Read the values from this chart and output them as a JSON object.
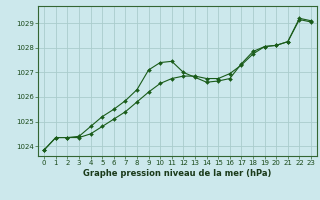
{
  "xlabel": "Graphe pression niveau de la mer (hPa)",
  "background_color": "#cce8ec",
  "grid_color": "#aacccc",
  "line_color": "#1a5c1a",
  "xlim": [
    -0.5,
    23.5
  ],
  "ylim": [
    1023.6,
    1029.7
  ],
  "yticks": [
    1024,
    1025,
    1026,
    1027,
    1028,
    1029
  ],
  "ytick_labels": [
    "1024",
    "1025",
    "1026",
    "1027",
    "1028",
    "1029"
  ],
  "xticks": [
    0,
    1,
    2,
    3,
    4,
    5,
    6,
    7,
    8,
    9,
    10,
    11,
    12,
    13,
    14,
    15,
    16,
    17,
    18,
    19,
    20,
    21,
    22,
    23
  ],
  "series1_x": [
    0,
    1,
    2,
    3,
    4,
    5,
    6,
    7,
    8,
    9,
    10,
    11,
    12,
    13,
    14,
    15,
    16,
    17,
    18,
    19,
    20,
    21,
    22,
    23
  ],
  "series1_y": [
    1023.85,
    1024.35,
    1024.35,
    1024.4,
    1024.8,
    1025.2,
    1025.5,
    1025.85,
    1026.3,
    1027.1,
    1027.4,
    1027.45,
    1027.0,
    1026.8,
    1026.6,
    1026.65,
    1026.75,
    1027.35,
    1027.85,
    1028.05,
    1028.1,
    1028.25,
    1029.2,
    1029.1
  ],
  "series2_x": [
    0,
    1,
    2,
    3,
    4,
    5,
    6,
    7,
    8,
    9,
    10,
    11,
    12,
    13,
    14,
    15,
    16,
    17,
    18,
    19,
    20,
    21,
    22,
    23
  ],
  "series2_y": [
    1023.85,
    1024.35,
    1024.35,
    1024.35,
    1024.5,
    1024.8,
    1025.1,
    1025.4,
    1025.8,
    1026.2,
    1026.55,
    1026.75,
    1026.85,
    1026.85,
    1026.75,
    1026.75,
    1026.95,
    1027.3,
    1027.75,
    1028.05,
    1028.1,
    1028.25,
    1029.15,
    1029.05
  ],
  "xlabel_fontsize": 6.0,
  "tick_fontsize": 5.0
}
